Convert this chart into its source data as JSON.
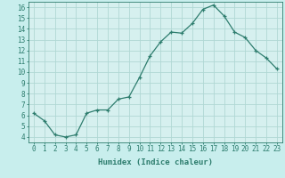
{
  "x": [
    0,
    1,
    2,
    3,
    4,
    5,
    6,
    7,
    8,
    9,
    10,
    11,
    12,
    13,
    14,
    15,
    16,
    17,
    18,
    19,
    20,
    21,
    22,
    23
  ],
  "y": [
    6.2,
    5.5,
    4.2,
    4.0,
    4.2,
    6.2,
    6.5,
    6.5,
    7.5,
    7.7,
    9.5,
    11.5,
    12.8,
    13.7,
    13.6,
    14.5,
    15.8,
    16.2,
    15.2,
    13.7,
    13.2,
    12.0,
    11.3,
    10.3
  ],
  "line_color": "#2e7d6e",
  "marker": "+",
  "marker_size": 3,
  "bg_color": "#c8eeed",
  "plot_bg_color": "#d6f0ef",
  "grid_color": "#b0d8d4",
  "xlabel": "Humidex (Indice chaleur)",
  "xlim": [
    -0.5,
    23.5
  ],
  "ylim": [
    3.5,
    16.5
  ],
  "yticks": [
    4,
    5,
    6,
    7,
    8,
    9,
    10,
    11,
    12,
    13,
    14,
    15,
    16
  ],
  "xticks": [
    0,
    1,
    2,
    3,
    4,
    5,
    6,
    7,
    8,
    9,
    10,
    11,
    12,
    13,
    14,
    15,
    16,
    17,
    18,
    19,
    20,
    21,
    22,
    23
  ],
  "tick_label_fontsize": 5.5,
  "xlabel_fontsize": 6.5,
  "tick_color": "#2e7d6e",
  "axis_color": "#2e7d6e",
  "linewidth": 0.9,
  "markeredgewidth": 0.9
}
